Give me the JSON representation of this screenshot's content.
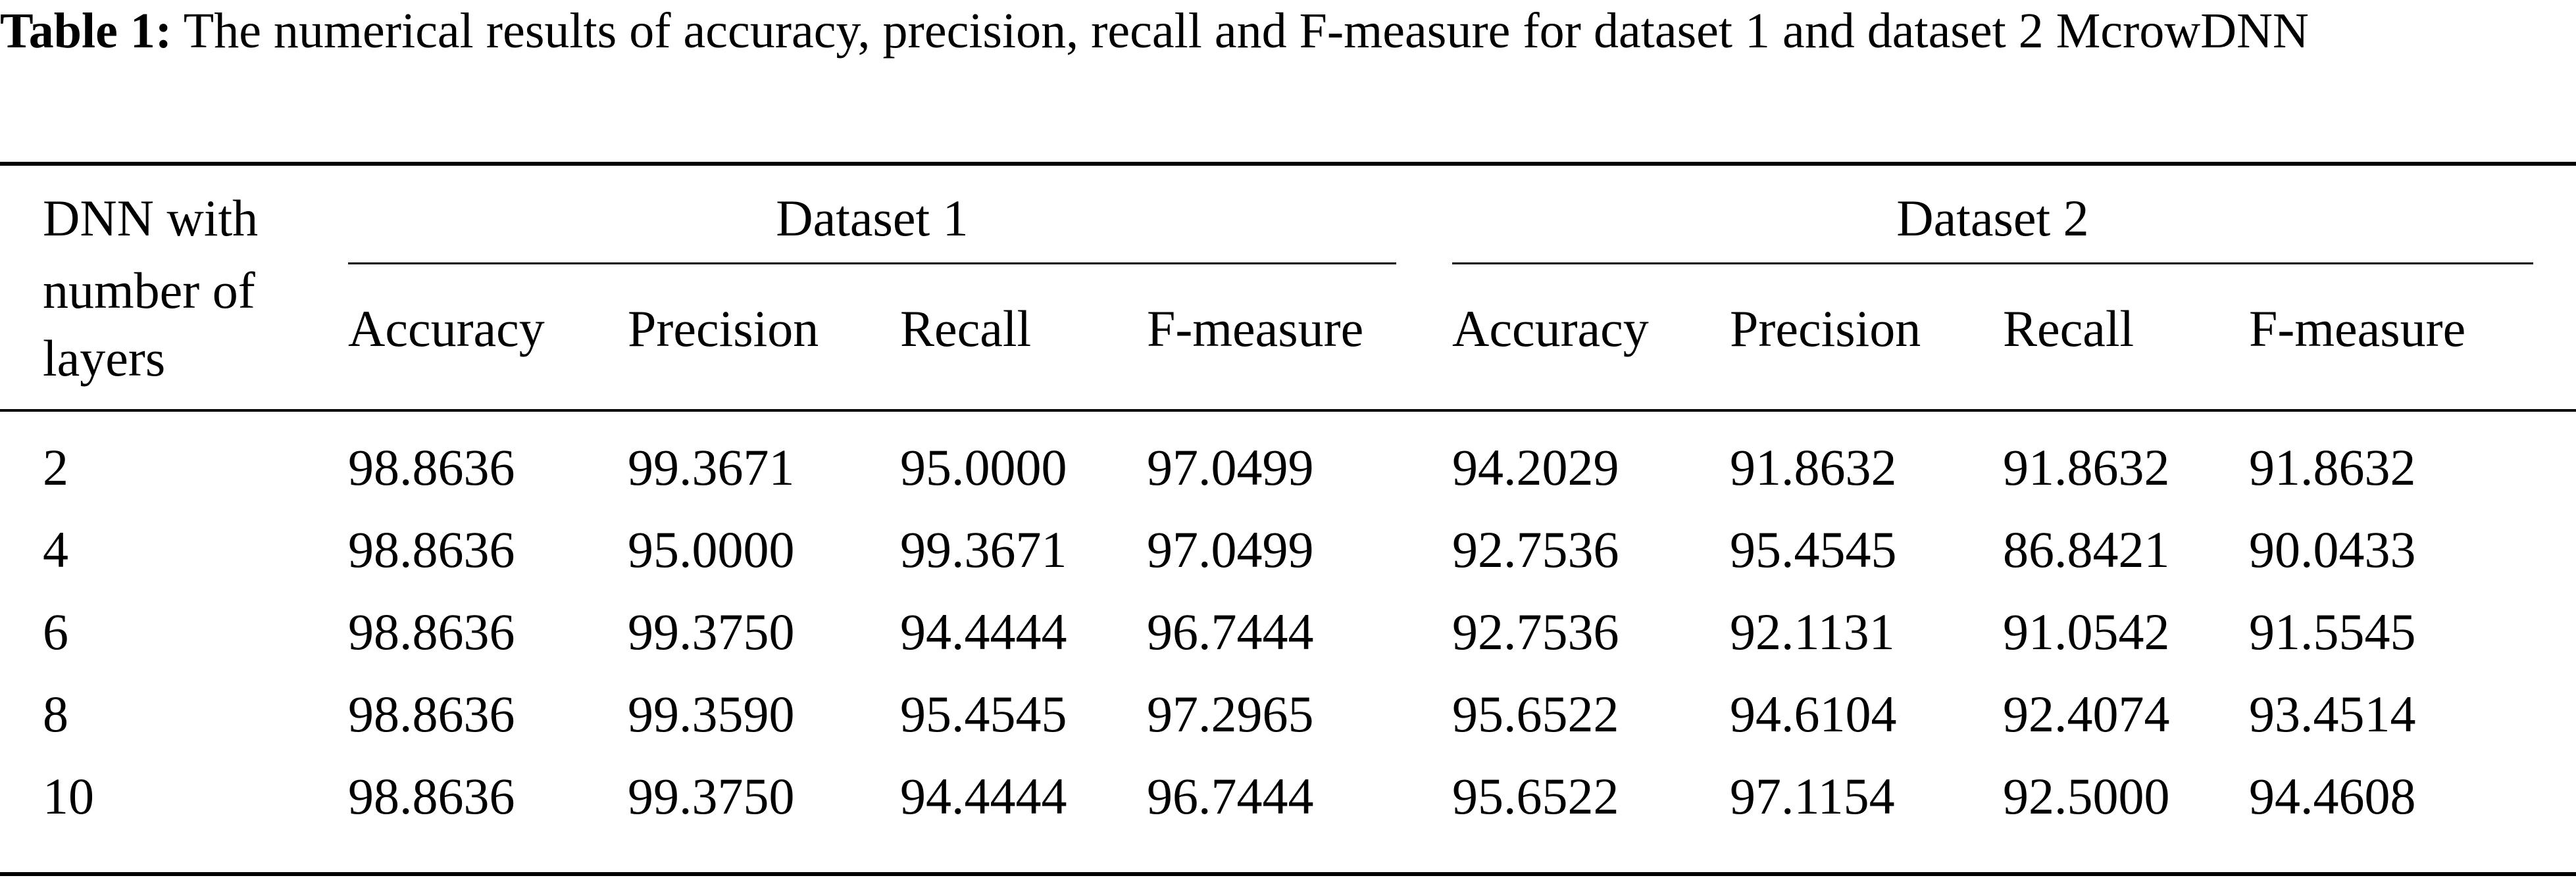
{
  "caption": {
    "label": "Table 1:",
    "text": " The numerical results of accuracy, precision, recall and F-measure for dataset 1 and dataset 2 McrowDNN"
  },
  "table": {
    "row_header": [
      "DNN with",
      "number of",
      "layers"
    ],
    "groups": [
      "Dataset 1",
      "Dataset 2"
    ],
    "columns": [
      "Accuracy",
      "Precision",
      "Recall",
      "F-measure",
      "Accuracy",
      "Precision",
      "Recall",
      "F-measure"
    ],
    "rows": [
      [
        "2",
        "98.8636",
        "99.3671",
        "95.0000",
        "97.0499",
        "94.2029",
        "91.8632",
        "91.8632",
        "91.8632"
      ],
      [
        "4",
        "98.8636",
        "95.0000",
        "99.3671",
        "97.0499",
        "92.7536",
        "95.4545",
        "86.8421",
        "90.0433"
      ],
      [
        "6",
        "98.8636",
        "99.3750",
        "94.4444",
        "96.7444",
        "92.7536",
        "92.1131",
        "91.0542",
        "91.5545"
      ],
      [
        "8",
        "98.8636",
        "99.3590",
        "95.4545",
        "97.2965",
        "95.6522",
        "94.6104",
        "92.4074",
        "93.4514"
      ],
      [
        "10",
        "98.8636",
        "99.3750",
        "94.4444",
        "96.7444",
        "95.6522",
        "97.1154",
        "92.5000",
        "94.4608"
      ]
    ]
  }
}
